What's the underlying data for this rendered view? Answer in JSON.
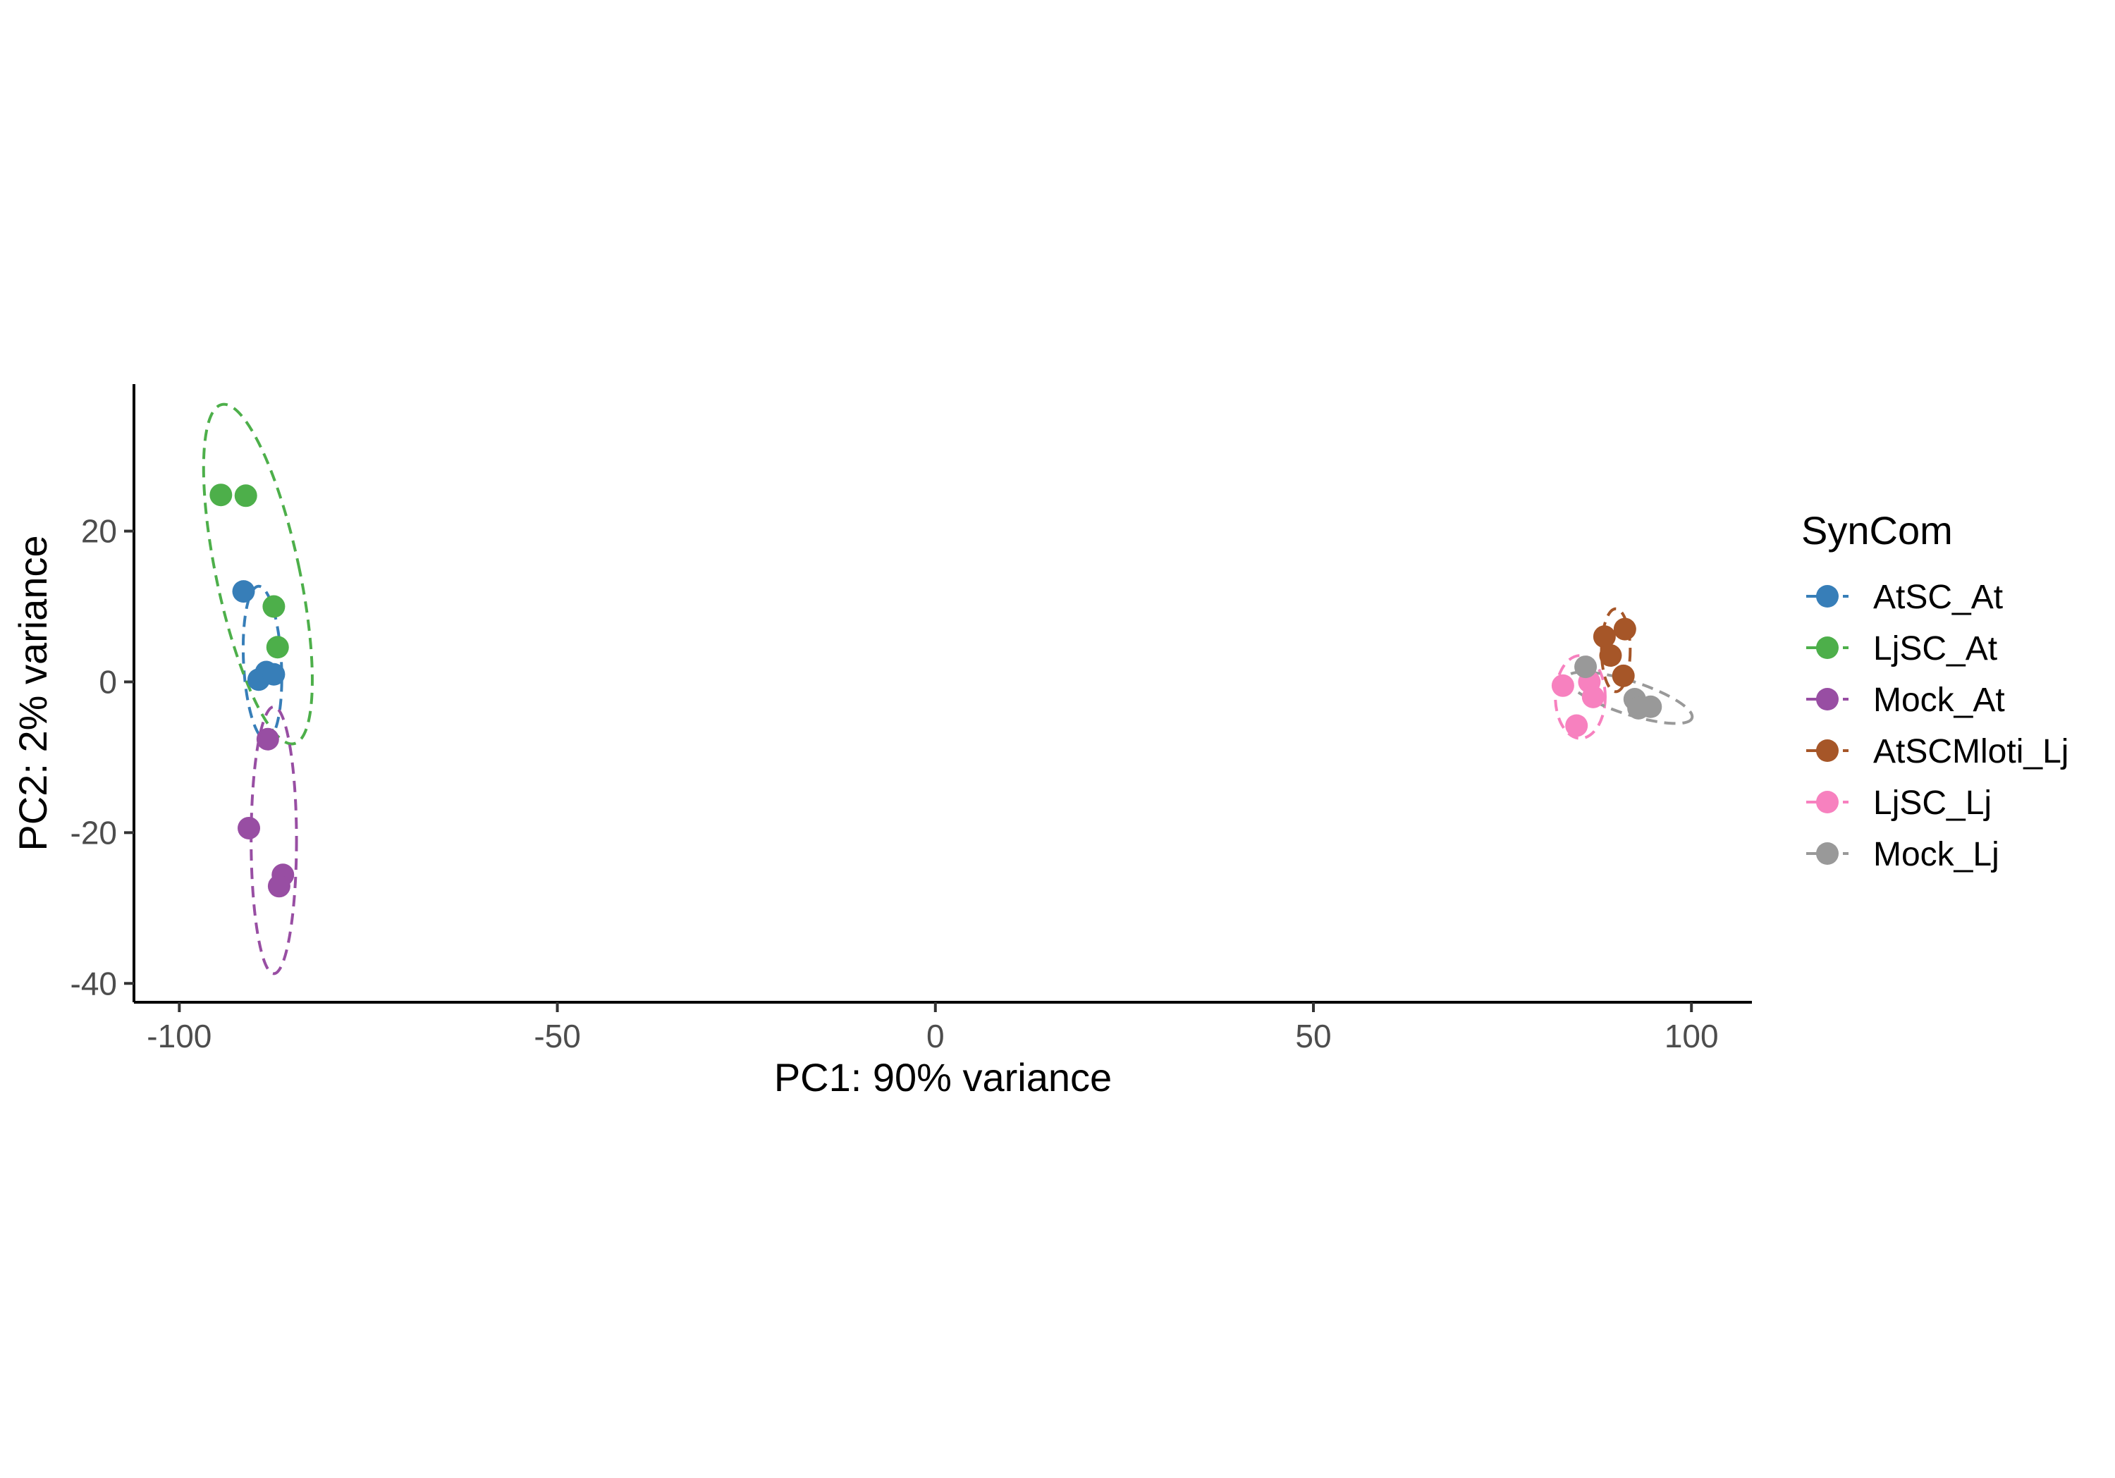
{
  "chart_data": {
    "type": "scatter",
    "xlabel": "PC1: 90% variance",
    "ylabel": "PC2: 2% variance",
    "xlim": [
      -106,
      108
    ],
    "ylim": [
      -42.5,
      39.5
    ],
    "x_ticks": [
      -100,
      -50,
      0,
      50,
      100
    ],
    "y_ticks": [
      -40,
      -20,
      0,
      20
    ],
    "x_tick_labels": [
      "-100",
      "-50",
      "0",
      "50",
      "100"
    ],
    "y_tick_labels": [
      "-40",
      "-20",
      "0",
      "20"
    ],
    "grid": false,
    "legend_title": "SynCom",
    "legend_position": "right",
    "series": [
      {
        "name": "AtSC_At",
        "color": "#377eb8",
        "points": [
          [
            -91.5,
            12
          ],
          [
            -89.5,
            0.3
          ],
          [
            -88.5,
            1.3
          ],
          [
            -87.5,
            1
          ]
        ],
        "ellipse": {
          "center": [
            -89,
            2.5
          ],
          "rx": 2.5,
          "ry": 10.2,
          "angle": -3
        }
      },
      {
        "name": "LjSC_At",
        "color": "#4daf4a",
        "points": [
          [
            -94.5,
            24.8
          ],
          [
            -91.2,
            24.7
          ],
          [
            -87.5,
            10
          ],
          [
            -87,
            4.6
          ]
        ],
        "ellipse": {
          "center": [
            -89.6,
            14.3
          ],
          "rx": 5.5,
          "ry": 23,
          "angle": -12
        }
      },
      {
        "name": "Mock_At",
        "color": "#984ea3",
        "points": [
          [
            -88.3,
            -7.6
          ],
          [
            -90.8,
            -19.4
          ],
          [
            -86.3,
            -25.6
          ],
          [
            -86.8,
            -27.1
          ]
        ],
        "ellipse": {
          "center": [
            -87.5,
            -21
          ],
          "rx": 3,
          "ry": 17.7,
          "angle": 0
        }
      },
      {
        "name": "AtSCMloti_Lj",
        "color": "#a65628",
        "points": [
          [
            88.5,
            6
          ],
          [
            91.2,
            7
          ],
          [
            89.3,
            3.5
          ],
          [
            91,
            0.8
          ]
        ],
        "ellipse": {
          "center": [
            90,
            4.2
          ],
          "rx": 1.9,
          "ry": 5.5,
          "angle": 0
        }
      },
      {
        "name": "LjSC_Lj",
        "color": "#f781bf",
        "points": [
          [
            83,
            -0.5
          ],
          [
            86.5,
            0
          ],
          [
            87,
            -2
          ],
          [
            84.8,
            -5.8
          ]
        ],
        "ellipse": {
          "center": [
            85.3,
            -2
          ],
          "rx": 3.3,
          "ry": 5.5,
          "angle": 0
        }
      },
      {
        "name": "Mock_Lj",
        "color": "#999999",
        "points": [
          [
            86,
            2
          ],
          [
            92.5,
            -2.3
          ],
          [
            93,
            -3.5
          ],
          [
            94.6,
            -3.3
          ]
        ],
        "ellipse": {
          "center": [
            91.8,
            -2.1
          ],
          "rx": 8.7,
          "ry": 2.2,
          "angle": 18
        }
      }
    ]
  }
}
